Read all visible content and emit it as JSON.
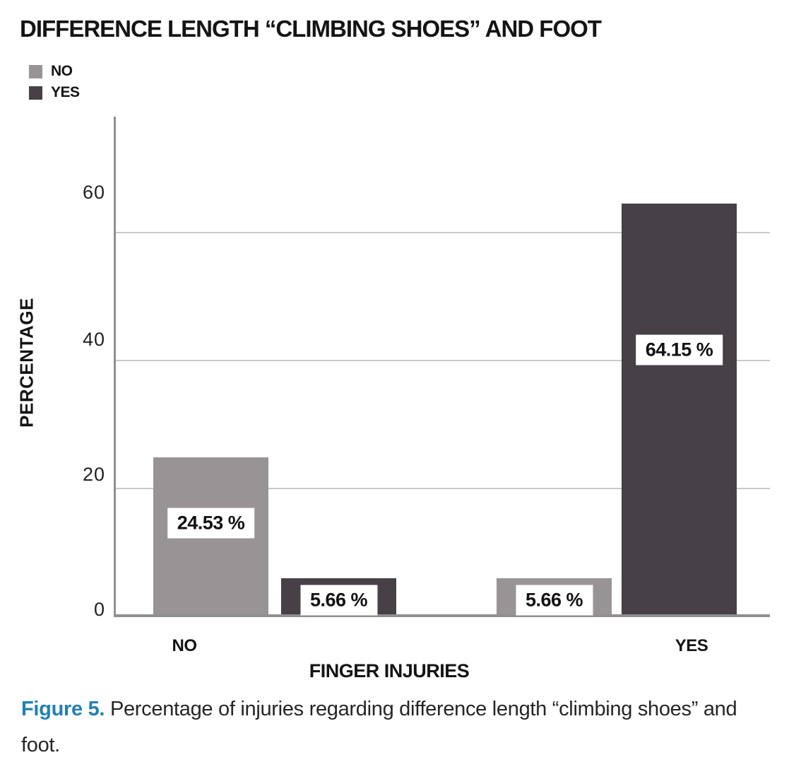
{
  "chart_data": {
    "type": "bar",
    "title": "DIFFERENCE LENGTH “CLIMBING SHOES” AND FOOT",
    "xlabel": "FINGER INJURIES",
    "ylabel": "PERCENTAGE",
    "categories": [
      "NO",
      "YES"
    ],
    "series": [
      {
        "name": "NO",
        "color": "#989495",
        "values": [
          24.53,
          5.66
        ]
      },
      {
        "name": "YES",
        "color": "#474046",
        "values": [
          5.66,
          64.15
        ]
      }
    ],
    "value_labels": [
      "24.53 %",
      "5.66 %",
      "5.66 %",
      "64.15 %"
    ],
    "yticks": [
      0,
      20,
      40,
      60
    ],
    "ylim": [
      0,
      78
    ],
    "grid": "horizontal",
    "legend_position": "top-left"
  },
  "caption": {
    "label": "Figure 5.",
    "text": "Percentage of injuries regarding difference length “climbing shoes” and foot."
  },
  "colors": {
    "series_no": "#989495",
    "series_yes": "#474046",
    "axis": "#8f8f8f",
    "gridline": "#c9c9c9",
    "figure_label_blue": "#2280b5",
    "text": "#141414",
    "value_box_bg": "#ffffff"
  }
}
